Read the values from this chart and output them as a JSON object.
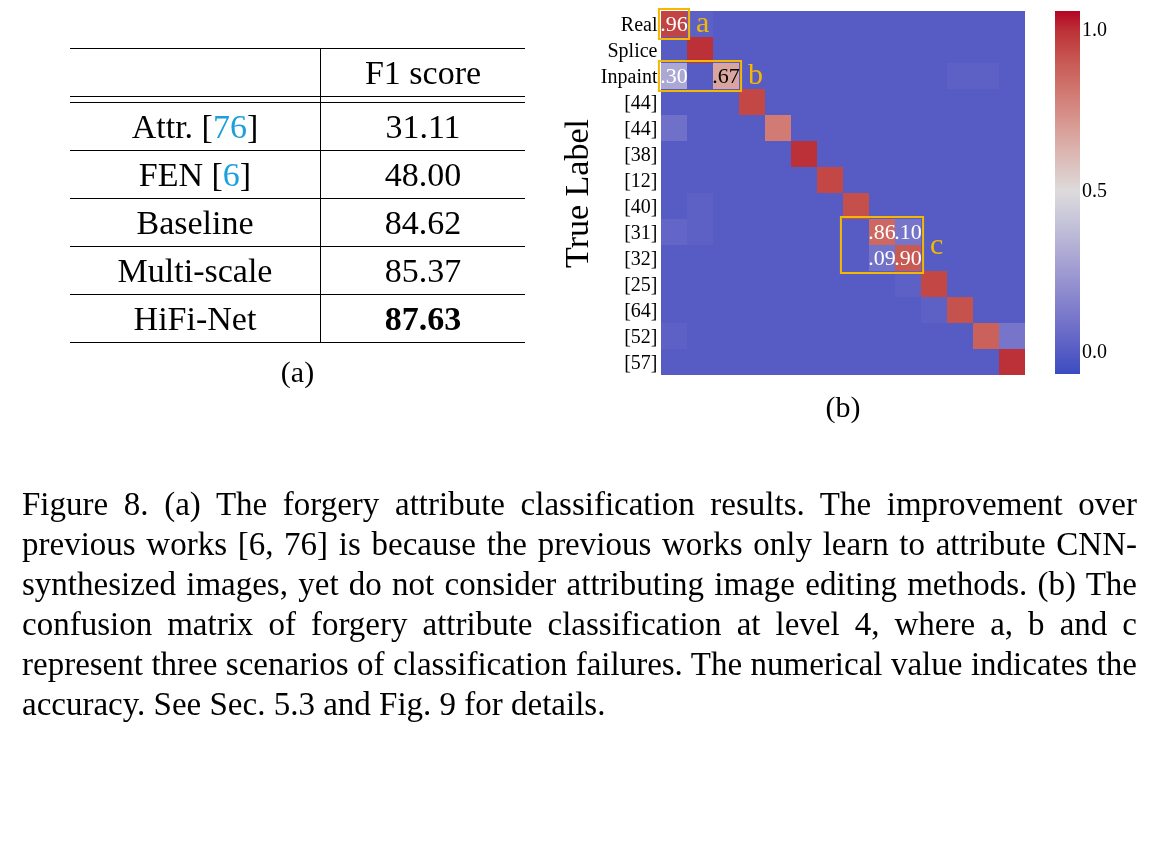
{
  "chart_data": [
    {
      "type": "other",
      "ylabel": "F1 score",
      "subtitle": "(a)",
      "categories": [
        "Attr. [76]",
        "FEN [6]",
        "Baseline",
        "Multi-scale",
        "HiFi-Net"
      ],
      "values": [
        31.11,
        48.0,
        84.62,
        85.37,
        87.63
      ],
      "value_labels": [
        "31.11",
        "48.00",
        "84.62",
        "85.37",
        "87.63"
      ]
    },
    {
      "type": "heatmap",
      "ylabel": "True Label",
      "subtitle": "(b)",
      "categories": [
        null,
        null,
        null,
        null,
        null,
        null,
        null,
        null,
        null,
        null,
        null,
        null,
        null,
        null
      ],
      "y_categories": [
        "Real",
        "Splice",
        "Inpaint",
        "[44]",
        "[44]",
        "[38]",
        "[12]",
        "[40]",
        "[31]",
        "[32]",
        "[25]",
        "[64]",
        "[52]",
        "[57]"
      ],
      "cells": [
        [
          0.96,
          0.02,
          0,
          0,
          0,
          0,
          0,
          0,
          0,
          0,
          0,
          0,
          0,
          0
        ],
        [
          0,
          1.0,
          0,
          0,
          0,
          0,
          0,
          0,
          0,
          0,
          0,
          0,
          0,
          0
        ],
        [
          0.3,
          0,
          0.67,
          0,
          0,
          0,
          0,
          0,
          0,
          0,
          0,
          0.02,
          0.02,
          0
        ],
        [
          0,
          0,
          0,
          0.95,
          0,
          0,
          0,
          0,
          0,
          0,
          0,
          0,
          0,
          0
        ],
        [
          0.08,
          0,
          0,
          0,
          0.8,
          0,
          0,
          0,
          0,
          0,
          0,
          0,
          0,
          0
        ],
        [
          0,
          0,
          0,
          0,
          0,
          1.0,
          0,
          0,
          0,
          0,
          0,
          0,
          0,
          0
        ],
        [
          0,
          0,
          0,
          0,
          0,
          0,
          0.95,
          0,
          0,
          0,
          0,
          0,
          0,
          0
        ],
        [
          0,
          0.02,
          0,
          0,
          0,
          0,
          0,
          0.93,
          0,
          0,
          0,
          0,
          0,
          0
        ],
        [
          0.04,
          0.02,
          0,
          0,
          0,
          0,
          0,
          0,
          0.86,
          0.1,
          0,
          0,
          0,
          0
        ],
        [
          0,
          0,
          0,
          0,
          0,
          0,
          0,
          0,
          0.09,
          0.9,
          0,
          0,
          0,
          0
        ],
        [
          0,
          0,
          0,
          0,
          0,
          0,
          0,
          0,
          0,
          0.02,
          0.95,
          0,
          0,
          0
        ],
        [
          0,
          0,
          0,
          0,
          0,
          0,
          0,
          0,
          0,
          0,
          0.02,
          0.92,
          0,
          0
        ],
        [
          0.02,
          0,
          0,
          0,
          0,
          0,
          0,
          0,
          0,
          0,
          0,
          0,
          0.88,
          0.1
        ],
        [
          0,
          0,
          0,
          0,
          0,
          0,
          0,
          0,
          0,
          0,
          0,
          0,
          0,
          1.0
        ]
      ],
      "cell_labels": [
        [
          ".96",
          null,
          null,
          null,
          null,
          null,
          null,
          null,
          null,
          null,
          null,
          null,
          null,
          null
        ],
        [
          null,
          null,
          null,
          null,
          null,
          null,
          null,
          null,
          null,
          null,
          null,
          null,
          null,
          null
        ],
        [
          ".30",
          null,
          ".67",
          null,
          null,
          null,
          null,
          null,
          null,
          null,
          null,
          null,
          null,
          null
        ],
        [
          null,
          null,
          null,
          null,
          null,
          null,
          null,
          null,
          null,
          null,
          null,
          null,
          null,
          null
        ],
        [
          null,
          null,
          null,
          null,
          null,
          null,
          null,
          null,
          null,
          null,
          null,
          null,
          null,
          null
        ],
        [
          null,
          null,
          null,
          null,
          null,
          null,
          null,
          null,
          null,
          null,
          null,
          null,
          null,
          null
        ],
        [
          null,
          null,
          null,
          null,
          null,
          null,
          null,
          null,
          null,
          null,
          null,
          null,
          null,
          null
        ],
        [
          null,
          null,
          null,
          null,
          null,
          null,
          null,
          null,
          null,
          null,
          null,
          null,
          null,
          null
        ],
        [
          null,
          null,
          null,
          null,
          null,
          null,
          null,
          null,
          ".86",
          ".10",
          null,
          null,
          null,
          null
        ],
        [
          null,
          null,
          null,
          null,
          null,
          null,
          null,
          null,
          ".09",
          ".90",
          null,
          null,
          null,
          null
        ],
        [
          null,
          null,
          null,
          null,
          null,
          null,
          null,
          null,
          null,
          null,
          null,
          null,
          null,
          null
        ],
        [
          null,
          null,
          null,
          null,
          null,
          null,
          null,
          null,
          null,
          null,
          null,
          null,
          null,
          null
        ],
        [
          null,
          null,
          null,
          null,
          null,
          null,
          null,
          null,
          null,
          null,
          null,
          null,
          null,
          null
        ],
        [
          null,
          null,
          null,
          null,
          null,
          null,
          null,
          null,
          null,
          null,
          null,
          null,
          null,
          null
        ]
      ],
      "clim": [
        -0.07,
        1.06
      ],
      "cticks": [
        {
          "value": 0,
          "label": "0.0"
        },
        {
          "value": 0.5,
          "label": "0.5"
        },
        {
          "value": 1,
          "label": "1.0"
        }
      ],
      "annotations": [
        "a",
        "b",
        "c",
        "Figure 8. (a) The forgery attribute classification results. The improvement over previous works [6, 76] is because the previous works only learn to attribute CNN-synthesized images, yet do not consider attributing image editing methods. (b) The confusion matrix of forgery attribute classification at level 4, where a, b and c represent three scenarios of classification failures. The numerical value indicates the accuracy. See Sec. 5.3 and Fig. 9 for details."
      ]
    }
  ]
}
